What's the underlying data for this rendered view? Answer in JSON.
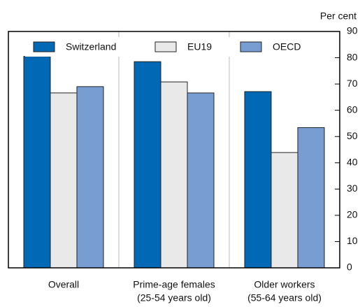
{
  "chart_data": {
    "type": "bar",
    "y_axis_label": "Per cent",
    "categories": [
      [
        "Overall"
      ],
      [
        "Prime-age females",
        "(25-54 years old)"
      ],
      [
        "Older workers",
        "(55-64 years old)"
      ]
    ],
    "series": [
      {
        "name": "Switzerland",
        "color": "#0068b4",
        "values": [
          80.5,
          78.5,
          67.1
        ]
      },
      {
        "name": "EU19",
        "color": "#e9e9e9",
        "values": [
          66.6,
          70.8,
          43.9
        ]
      },
      {
        "name": "OECD",
        "color": "#789dd3",
        "values": [
          69.0,
          66.6,
          53.4
        ]
      }
    ],
    "ylim": [
      0,
      90
    ],
    "yticks": [
      0,
      10,
      20,
      30,
      40,
      50,
      60,
      70,
      80,
      90
    ],
    "legend": "upper center"
  }
}
